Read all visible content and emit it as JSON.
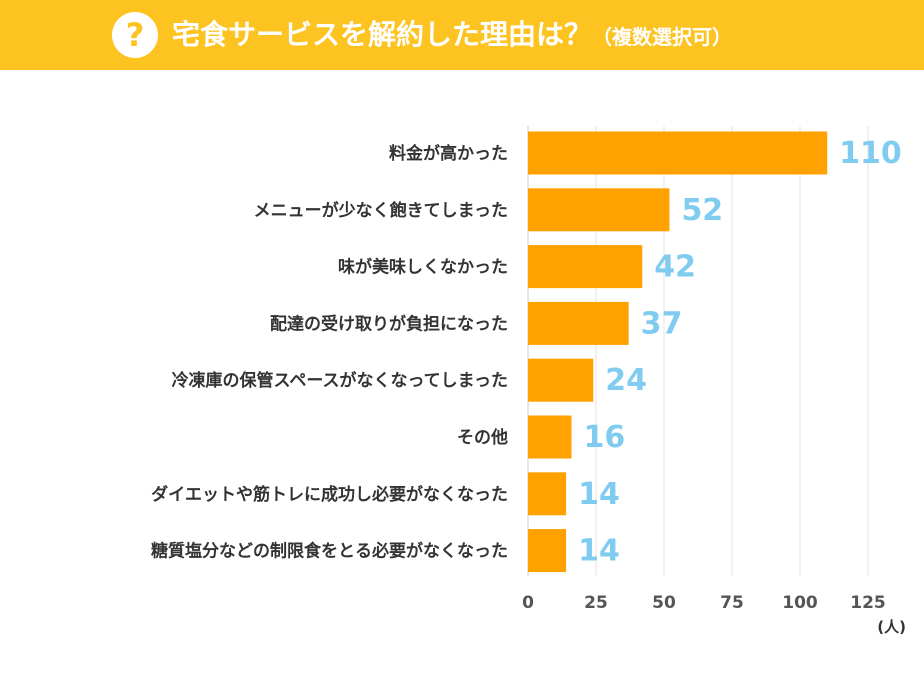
{
  "header": {
    "icon": "question-icon",
    "icon_glyph": "?",
    "title_main": "宅食サービスを解約した理由は？",
    "title_sub": "（複数選択可）",
    "background": "#fcc321"
  },
  "chart_data": {
    "type": "bar",
    "orientation": "horizontal",
    "title": "宅食サービスを解約した理由は？（複数選択可）",
    "categories": [
      "料金が高かった",
      "メニューが少なく飽きてしまった",
      "味が美味しくなかった",
      "配達の受け取りが負担になった",
      "冷凍庫の保管スペースがなくなってしまった",
      "その他",
      "ダイエットや筋トレに成功し必要がなくなった",
      "糖質塩分などの制限食をとる必要がなくなった"
    ],
    "values": [
      110,
      52,
      42,
      37,
      24,
      16,
      14,
      14
    ],
    "xlim": [
      0,
      125
    ],
    "xticks": [
      "0",
      "25",
      "50",
      "75",
      "100",
      "125"
    ],
    "tick_values": [
      0,
      25,
      50,
      75,
      100,
      125
    ],
    "unit": "(人)",
    "grid": true,
    "bar_color": "#ffa200",
    "value_label_color": "#80ccf0"
  }
}
